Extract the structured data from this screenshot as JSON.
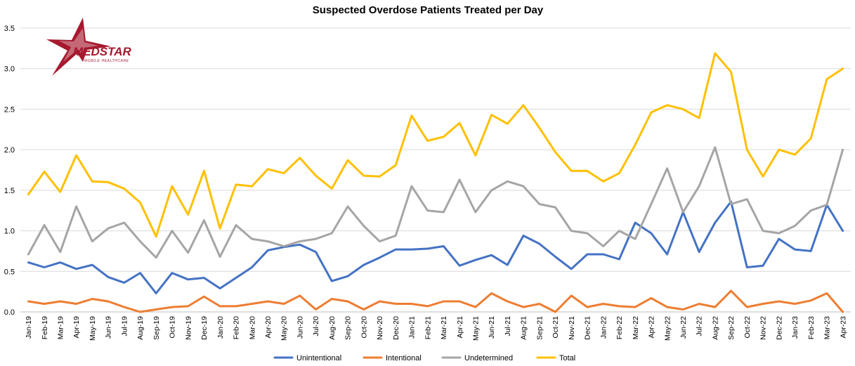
{
  "logo": {
    "name": "MEDSTAR",
    "tagline": "MOBILE HEALTHCARE",
    "color": "#a6192e"
  },
  "chart_data": {
    "type": "line",
    "title": "Suspected Overdose Patients Treated per Day",
    "xlabel": "",
    "ylabel": "",
    "ylim": [
      0,
      3.5
    ],
    "yticks": [
      "0.0",
      "0.5",
      "1.0",
      "1.5",
      "2.0",
      "2.5",
      "3.0",
      "3.5"
    ],
    "grid": true,
    "legend_position": "bottom",
    "categories": [
      "Jan-19",
      "Feb-19",
      "Mar-19",
      "Apr-19",
      "May-19",
      "Jun-19",
      "Jul-19",
      "Aug-19",
      "Sep-19",
      "Oct-19",
      "Nov-19",
      "Dec-19",
      "Jan-20",
      "Feb-20",
      "Mar-20",
      "Apr-20",
      "May-20",
      "Jun-20",
      "Jul-20",
      "Aug-20",
      "Sep-20",
      "Oct-20",
      "Nov-20",
      "Dec-20",
      "Jan-21",
      "Feb-21",
      "Mar-21",
      "Apr-21",
      "May-21",
      "Jun-21",
      "Jul-21",
      "Aug-21",
      "Sep-21",
      "Oct-21",
      "Nov-21",
      "Dec-21",
      "Jan-22",
      "Feb-22",
      "Mar-22",
      "Apr-22",
      "May-22",
      "Jun-22",
      "Jul-22",
      "Aug-22",
      "Sep-22",
      "Oct-22",
      "Nov-22",
      "Dec-22",
      "Jan-23",
      "Feb-23",
      "Mar-23",
      "Apr-23"
    ],
    "series": [
      {
        "name": "Unintentional",
        "color": "#4472c4",
        "values": [
          0.61,
          0.55,
          0.61,
          0.53,
          0.58,
          0.43,
          0.36,
          0.48,
          0.23,
          0.48,
          0.4,
          0.42,
          0.29,
          0.42,
          0.55,
          0.76,
          0.8,
          0.83,
          0.74,
          0.38,
          0.44,
          0.58,
          0.67,
          0.77,
          0.77,
          0.78,
          0.81,
          0.57,
          0.64,
          0.7,
          0.58,
          0.94,
          0.84,
          0.68,
          0.53,
          0.71,
          0.71,
          0.65,
          1.1,
          0.97,
          0.71,
          1.23,
          0.74,
          1.1,
          1.36,
          0.55,
          0.57,
          0.9,
          0.77,
          0.75,
          1.32,
          1.0
        ]
      },
      {
        "name": "Intentional",
        "color": "#ed7d31",
        "values": [
          0.13,
          0.1,
          0.13,
          0.1,
          0.16,
          0.13,
          0.06,
          0.0,
          0.03,
          0.06,
          0.07,
          0.19,
          0.07,
          0.07,
          0.1,
          0.13,
          0.1,
          0.2,
          0.03,
          0.16,
          0.13,
          0.03,
          0.13,
          0.1,
          0.1,
          0.07,
          0.13,
          0.13,
          0.06,
          0.23,
          0.13,
          0.06,
          0.1,
          0.0,
          0.2,
          0.06,
          0.1,
          0.07,
          0.06,
          0.17,
          0.06,
          0.03,
          0.1,
          0.06,
          0.26,
          0.06,
          0.1,
          0.13,
          0.1,
          0.14,
          0.23,
          0.0
        ]
      },
      {
        "name": "Undetermined",
        "color": "#a5a5a5",
        "values": [
          0.71,
          1.07,
          0.74,
          1.3,
          0.87,
          1.03,
          1.1,
          0.87,
          0.67,
          1.0,
          0.73,
          1.13,
          0.68,
          1.07,
          0.9,
          0.87,
          0.81,
          0.87,
          0.9,
          0.97,
          1.3,
          1.06,
          0.87,
          0.94,
          1.55,
          1.25,
          1.23,
          1.63,
          1.23,
          1.5,
          1.61,
          1.55,
          1.33,
          1.29,
          1.0,
          0.97,
          0.81,
          1.0,
          0.9,
          1.33,
          1.77,
          1.23,
          1.55,
          2.03,
          1.33,
          1.39,
          1.0,
          0.97,
          1.06,
          1.25,
          1.32,
          2.0
        ]
      },
      {
        "name": "Total",
        "color": "#ffc000",
        "values": [
          1.45,
          1.73,
          1.48,
          1.93,
          1.61,
          1.6,
          1.52,
          1.35,
          0.93,
          1.55,
          1.2,
          1.74,
          1.03,
          1.57,
          1.55,
          1.76,
          1.71,
          1.9,
          1.68,
          1.52,
          1.87,
          1.68,
          1.67,
          1.81,
          2.42,
          2.11,
          2.16,
          2.33,
          1.93,
          2.43,
          2.32,
          2.55,
          2.27,
          1.97,
          1.74,
          1.74,
          1.61,
          1.71,
          2.06,
          2.46,
          2.55,
          2.5,
          2.39,
          3.19,
          2.96,
          2.0,
          1.67,
          2.0,
          1.94,
          2.14,
          2.87,
          3.0
        ]
      }
    ]
  }
}
